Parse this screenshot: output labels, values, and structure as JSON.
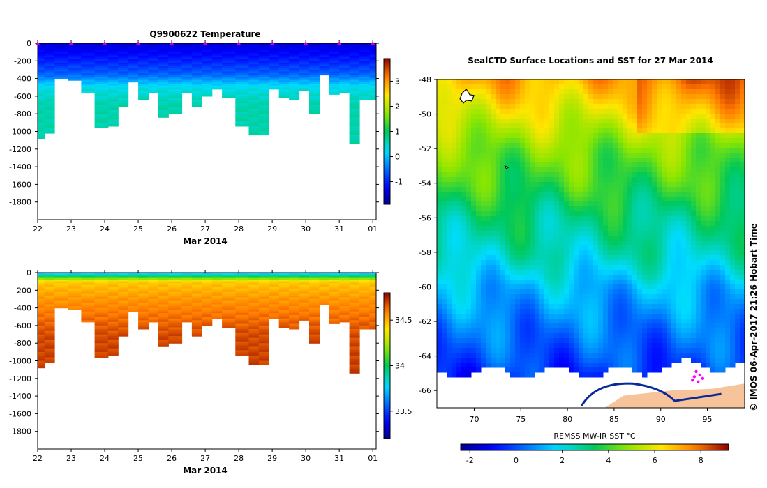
{
  "chart_data": [
    {
      "type": "heatmap",
      "title": "Q9900622  Temperature",
      "xlabel": "Mar 2014",
      "ylabel": "",
      "x_tick_labels": [
        "22",
        "23",
        "24",
        "25",
        "26",
        "27",
        "28",
        "29",
        "30",
        "31",
        "01"
      ],
      "y_tick_labels": [
        "0",
        "-200",
        "-400",
        "-600",
        "-800",
        "-1000",
        "-1200",
        "-1400",
        "-1600",
        "-1800"
      ],
      "ylim": [
        -2000,
        0
      ],
      "xlim": [
        22,
        32.1
      ],
      "colorbar": {
        "ticks": [
          "3",
          "2",
          "1",
          "0",
          "-1"
        ],
        "values": [
          3,
          2,
          1,
          0,
          -1
        ],
        "range": [
          -1.9,
          3.9
        ]
      },
      "surface_markers": [
        22.0,
        23.0,
        24.0,
        25.0,
        26.0,
        27.0,
        28.0,
        29.0,
        30.0,
        31.0,
        32.0
      ],
      "profiles": {
        "time": [
          21.9,
          22.2,
          22.5,
          22.9,
          23.3,
          23.7,
          24.1,
          24.4,
          24.7,
          25.0,
          25.3,
          25.6,
          25.9,
          26.3,
          26.6,
          26.9,
          27.2,
          27.5,
          27.9,
          28.3,
          28.6,
          28.9,
          29.2,
          29.5,
          29.8,
          30.1,
          30.4,
          30.7,
          31.0,
          31.3,
          31.6,
          31.9
        ],
        "max_depth": [
          1080,
          1000,
          380,
          420,
          550,
          930,
          930,
          700,
          410,
          640,
          540,
          820,
          800,
          540,
          700,
          590,
          500,
          600,
          930,
          1020,
          1020,
          520,
          610,
          620,
          530,
          790,
          340,
          580,
          550,
          1120,
          630,
          620
        ]
      },
      "layers": {
        "depth": [
          0,
          60,
          200,
          350,
          500,
          700,
          1100
        ],
        "value": [
          -1.5,
          -1.3,
          -1.0,
          -0.6,
          0.3,
          0.6,
          0.6
        ]
      }
    },
    {
      "type": "heatmap",
      "title": "",
      "xlabel": "Mar 2014",
      "ylabel": "",
      "x_tick_labels": [
        "22",
        "23",
        "24",
        "25",
        "26",
        "27",
        "28",
        "29",
        "30",
        "31",
        "01"
      ],
      "y_tick_labels": [
        "0",
        "-200",
        "-400",
        "-600",
        "-800",
        "-1000",
        "-1200",
        "-1400",
        "-1600",
        "-1800"
      ],
      "ylim": [
        -2000,
        0
      ],
      "xlim": [
        22,
        32.1
      ],
      "colorbar": {
        "ticks": [
          "34.5",
          "34",
          "33.5"
        ],
        "values": [
          34.5,
          34.0,
          33.5
        ],
        "range": [
          33.2,
          34.8
        ]
      },
      "layers": {
        "depth": [
          0,
          40,
          100,
          300,
          500,
          700,
          1100
        ],
        "value": [
          33.7,
          33.95,
          34.45,
          34.55,
          34.62,
          34.68,
          34.7
        ]
      }
    },
    {
      "type": "heatmap",
      "title": "SealCTD Surface Locations and SST for 27 Mar 2014",
      "xlabel": "",
      "ylabel": "",
      "x_tick_labels": [
        "70",
        "75",
        "80",
        "85",
        "90",
        "95"
      ],
      "x_tick_values": [
        70,
        75,
        80,
        85,
        90,
        95
      ],
      "y_tick_labels": [
        "-48",
        "-50",
        "-52",
        "-54",
        "-56",
        "-58",
        "-60",
        "-62",
        "-64",
        "-66"
      ],
      "y_tick_values": [
        -48,
        -50,
        -52,
        -54,
        -56,
        -58,
        -60,
        -62,
        -64,
        -66
      ],
      "xlim": [
        66,
        99
      ],
      "ylim": [
        -67,
        -48
      ],
      "colorbar": {
        "label": "REMSS MW-IR SST °C",
        "ticks": [
          "-2",
          "0",
          "2",
          "4",
          "6",
          "8"
        ],
        "values": [
          -2,
          0,
          2,
          4,
          6,
          8
        ],
        "range": [
          -2.4,
          9.2
        ]
      },
      "sst_by_latitude": {
        "lat": [
          -48,
          -50,
          -52,
          -54,
          -56,
          -58,
          -60,
          -62,
          -64,
          -65
        ],
        "value": [
          7.0,
          5.8,
          4.6,
          3.9,
          3.0,
          2.4,
          1.3,
          0.6,
          0.0,
          -0.4
        ]
      },
      "credit": "© IMOS 06-Apr-2017 21:26 Hobart Time"
    }
  ]
}
